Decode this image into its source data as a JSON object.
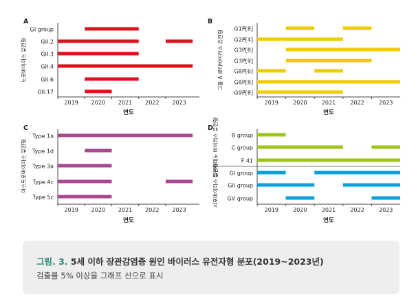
{
  "chart_data": [
    {
      "type": "timeline",
      "panel": "A",
      "ylabel": "노로바이러스 유전형",
      "xlabel": "연도",
      "x_ticks": [
        "2019",
        "2020",
        "2021",
        "2022",
        "2023"
      ],
      "xlim": [
        2018.5,
        2023.75
      ],
      "color": "#d9141e",
      "rows": [
        {
          "label": "GI group",
          "segments": [
            [
              2019.5,
              2021.5
            ]
          ]
        },
        {
          "label": "GII.2",
          "segments": [
            [
              2018.5,
              2021.5
            ],
            [
              2022.5,
              2023.5
            ]
          ]
        },
        {
          "label": "GII.3",
          "segments": [
            [
              2018.5,
              2021.5
            ]
          ]
        },
        {
          "label": "GII.4",
          "segments": [
            [
              2018.5,
              2023.5
            ]
          ]
        },
        {
          "label": "GII.6",
          "segments": [
            [
              2019.5,
              2021.5
            ]
          ]
        },
        {
          "label": "GII.17",
          "segments": [
            [
              2019.5,
              2020.5
            ]
          ]
        }
      ]
    },
    {
      "type": "timeline",
      "panel": "B",
      "ylabel": "그룹 A 로타바이러스 유전형",
      "xlabel": "연도",
      "x_ticks": [
        "2019",
        "2020",
        "2021",
        "2022",
        "2023"
      ],
      "xlim": [
        2018.5,
        2023.5
      ],
      "color": "#f2cb05",
      "rows": [
        {
          "label": "G1P[8]",
          "segments": [
            [
              2019.5,
              2020.5
            ],
            [
              2021.5,
              2022.5
            ]
          ]
        },
        {
          "label": "G2P[4]",
          "segments": [
            [
              2018.5,
              2021.5
            ]
          ]
        },
        {
          "label": "G3P[8]",
          "segments": [
            [
              2019.5,
              2023.5
            ]
          ]
        },
        {
          "label": "G3P[9]",
          "segments": [
            [
              2019.5,
              2022.5
            ]
          ]
        },
        {
          "label": "G8P[6]",
          "segments": [
            [
              2018.5,
              2019.5
            ],
            [
              2020.5,
              2021.5
            ]
          ]
        },
        {
          "label": "G8P[8]",
          "segments": [
            [
              2018.5,
              2023.5
            ]
          ]
        },
        {
          "label": "G9P[8]",
          "segments": [
            [
              2018.5,
              2021.5
            ]
          ]
        }
      ]
    },
    {
      "type": "timeline",
      "panel": "C",
      "ylabel": "아스트로바이러스 유전형",
      "xlabel": "연도",
      "x_ticks": [
        "2019",
        "2020",
        "2021",
        "2022",
        "2023"
      ],
      "xlim": [
        2018.5,
        2023.75
      ],
      "color": "#a8488f",
      "rows": [
        {
          "label": "Type 1a",
          "segments": [
            [
              2018.5,
              2023.5
            ]
          ]
        },
        {
          "label": "Type 1d",
          "segments": [
            [
              2019.5,
              2020.5
            ]
          ]
        },
        {
          "label": "Type 3a",
          "segments": [
            [
              2018.5,
              2020.5
            ]
          ]
        },
        {
          "label": "Type 4c",
          "segments": [
            [
              2018.5,
              2020.5
            ],
            [
              2022.5,
              2023.5
            ]
          ]
        },
        {
          "label": "Type 5c",
          "segments": [
            [
              2018.5,
              2020.5
            ]
          ]
        }
      ]
    },
    {
      "type": "timeline",
      "panel": "D",
      "xlabel": "연도",
      "x_ticks": [
        "2019",
        "2020",
        "2021",
        "2022",
        "2023"
      ],
      "xlim": [
        2018.5,
        2023.5
      ],
      "groups": [
        {
          "ylabel": "장관아데노 바이러스 유전형",
          "color": "#9ec41a",
          "rows": [
            {
              "label": "B group",
              "segments": [
                [
                  2018.5,
                  2019.5
                ]
              ]
            },
            {
              "label": "C group",
              "segments": [
                [
                  2018.5,
                  2021.5
                ],
                [
                  2022.5,
                  2023.5
                ]
              ]
            },
            {
              "label": "F 41",
              "segments": [
                [
                  2018.5,
                  2023.5
                ]
              ]
            }
          ]
        },
        {
          "ylabel": "사포바이러스 유전형",
          "color": "#0aa0dc",
          "rows": [
            {
              "label": "GI group",
              "segments": [
                [
                  2018.5,
                  2019.5
                ],
                [
                  2020.5,
                  2023.5
                ]
              ]
            },
            {
              "label": "GII group",
              "segments": [
                [
                  2018.5,
                  2020.5
                ],
                [
                  2021.5,
                  2023.5
                ]
              ]
            },
            {
              "label": "GV group",
              "segments": [
                [
                  2019.5,
                  2020.5
                ],
                [
                  2022.5,
                  2023.5
                ]
              ]
            }
          ]
        }
      ]
    }
  ],
  "caption": {
    "label": "그림. 3.",
    "title": "5세 이하 장관감염증 원인 바이러스 유전자형 분포(2019~2023년)",
    "subtitle": "검출률 5% 이상을 그래프 선으로 표시"
  }
}
